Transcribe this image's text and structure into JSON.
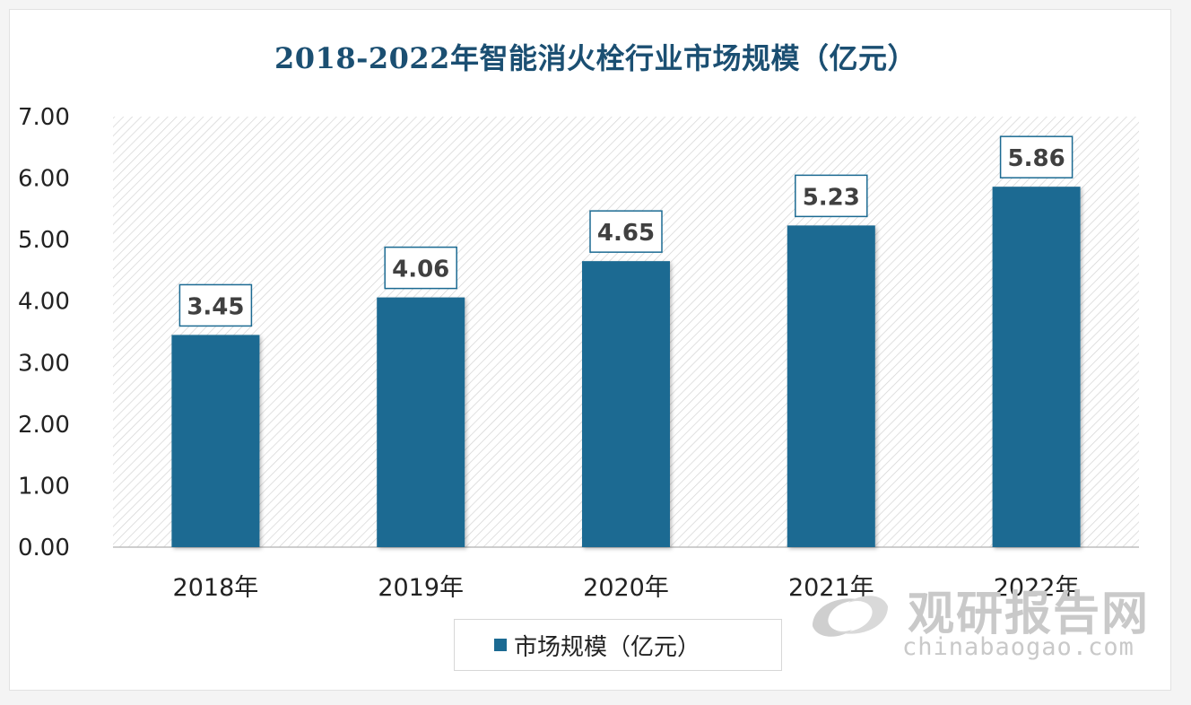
{
  "chart_data": {
    "type": "bar",
    "title": "2018-2022年智能消火栓行业市场规模（亿元）",
    "categories": [
      "2018年",
      "2019年",
      "2020年",
      "2021年",
      "2022年"
    ],
    "series": [
      {
        "name": "市场规模（亿元）",
        "values": [
          3.45,
          4.06,
          4.65,
          5.23,
          5.86
        ],
        "data_labels": [
          "3.45",
          "4.06",
          "4.65",
          "5.23",
          "5.86"
        ]
      }
    ],
    "ylim": [
      0,
      7
    ],
    "yticks": [
      "0.00",
      "1.00",
      "2.00",
      "3.00",
      "4.00",
      "5.00",
      "6.00",
      "7.00"
    ],
    "xlabel": "",
    "ylabel": "",
    "grid": false,
    "plot_background": "diagonal-hatch",
    "legend_position": "bottom",
    "colors": {
      "bar": "#1b6a92",
      "title": "#1b4f72",
      "label_border": "#1b6a92"
    }
  },
  "watermark": {
    "brand_cn": "观研报告网",
    "brand_en": "chinabaogao.com",
    "icon": "chinabaogao-logo-icon"
  }
}
